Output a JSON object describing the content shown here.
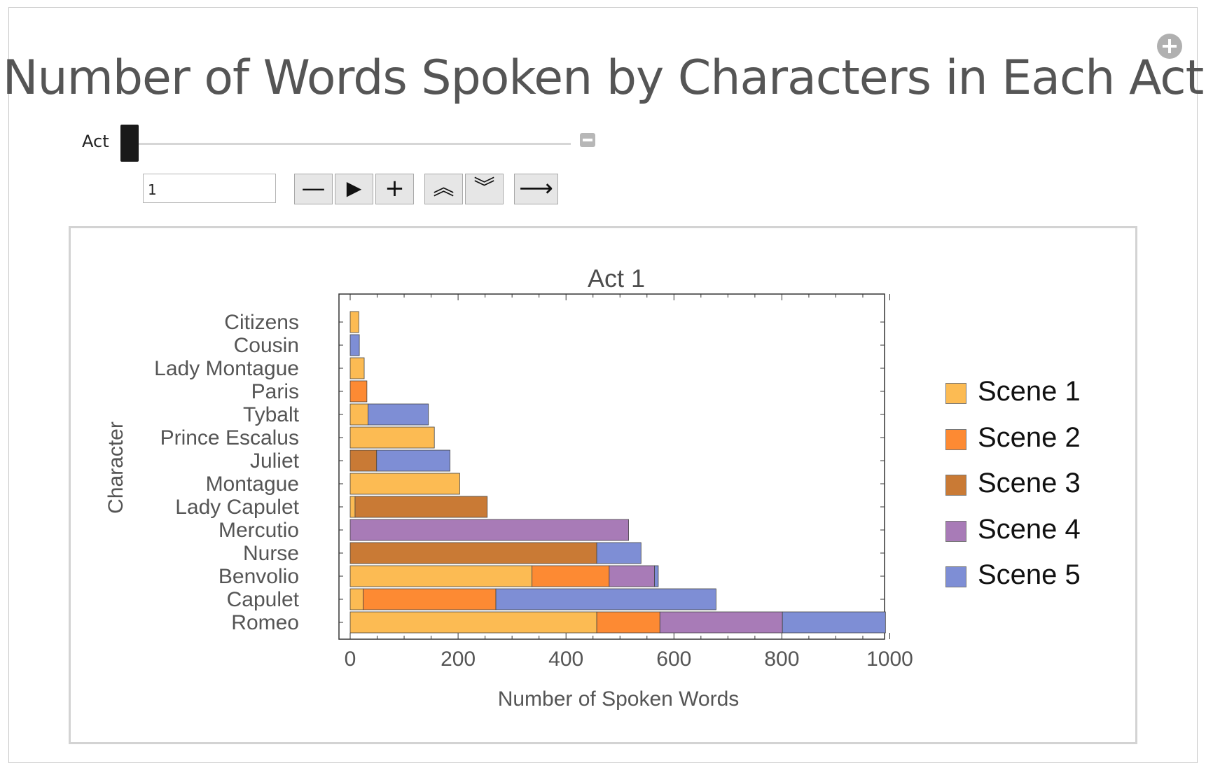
{
  "title": "Number of Words Spoken by Characters in Each Act",
  "controls": {
    "slider_label": "Act",
    "slider_value": 1,
    "slider_min": 1,
    "slider_max": 5,
    "input_value": "1",
    "buttons": [
      {
        "name": "step-back-button",
        "glyph": "—"
      },
      {
        "name": "play-button",
        "glyph": "▶"
      },
      {
        "name": "step-forward-button",
        "glyph": "+"
      },
      {
        "name": "faster-button",
        "glyph": "︽"
      },
      {
        "name": "slower-button",
        "glyph": "︾"
      },
      {
        "name": "direction-button",
        "glyph": "⟶"
      }
    ]
  },
  "chart_data": {
    "type": "bar",
    "orientation": "horizontal",
    "stacked": true,
    "title": "Act 1",
    "xlabel": "Number of Spoken Words",
    "ylabel": "Character",
    "xlim": [
      0,
      1000
    ],
    "x_ticks": [
      "0",
      "200",
      "400",
      "600",
      "800",
      "1000"
    ],
    "legend_position": "right",
    "categories": [
      "Romeo",
      "Capulet",
      "Benvolio",
      "Nurse",
      "Mercutio",
      "Lady Capulet",
      "Montague",
      "Juliet",
      "Prince Escalus",
      "Tybalt",
      "Paris",
      "Lady Montague",
      "Cousin",
      "Citizens"
    ],
    "series": [
      {
        "name": "Scene 1",
        "color": "#FCBB53",
        "values": [
          457,
          24,
          337,
          0,
          0,
          9,
          203,
          0,
          156,
          33,
          0,
          26,
          0,
          16
        ]
      },
      {
        "name": "Scene 2",
        "color": "#FD8A33",
        "values": [
          117,
          246,
          143,
          0,
          0,
          0,
          0,
          0,
          0,
          0,
          31,
          0,
          0,
          0
        ]
      },
      {
        "name": "Scene 3",
        "color": "#C97A35",
        "values": [
          0,
          0,
          0,
          457,
          0,
          245,
          0,
          49,
          0,
          0,
          0,
          0,
          0,
          0
        ]
      },
      {
        "name": "Scene 4",
        "color": "#A87BB7",
        "values": [
          227,
          0,
          84,
          0,
          516,
          0,
          0,
          0,
          0,
          0,
          0,
          0,
          0,
          0
        ]
      },
      {
        "name": "Scene 5",
        "color": "#7E8ED5",
        "values": [
          191,
          408,
          7,
          82,
          0,
          0,
          0,
          136,
          0,
          112,
          0,
          0,
          17,
          0
        ]
      }
    ]
  }
}
